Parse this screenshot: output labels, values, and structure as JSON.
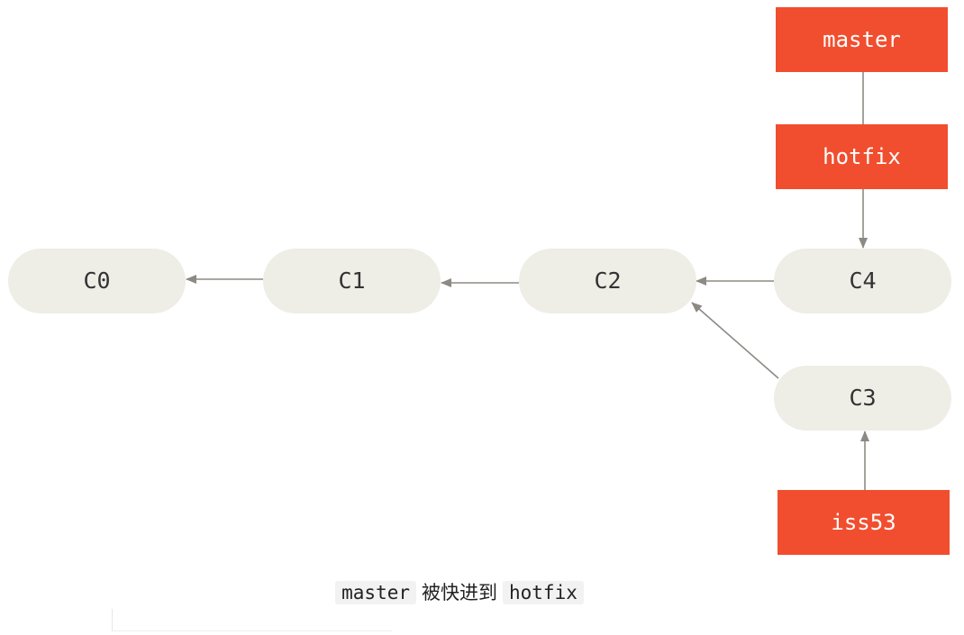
{
  "commits": [
    {
      "id": "c0",
      "label": "C0"
    },
    {
      "id": "c1",
      "label": "C1"
    },
    {
      "id": "c2",
      "label": "C2"
    },
    {
      "id": "c4",
      "label": "C4"
    },
    {
      "id": "c3",
      "label": "C3"
    }
  ],
  "refs": [
    {
      "id": "master",
      "label": "master"
    },
    {
      "id": "hotfix",
      "label": "hotfix"
    },
    {
      "id": "iss53",
      "label": "iss53"
    }
  ],
  "caption": {
    "code1": "master",
    "text": "被快进到",
    "code2": "hotfix"
  },
  "colors": {
    "commit_fill": "#eeede6",
    "ref_fill": "#f14e2f",
    "arrow": "#8d8a84"
  }
}
